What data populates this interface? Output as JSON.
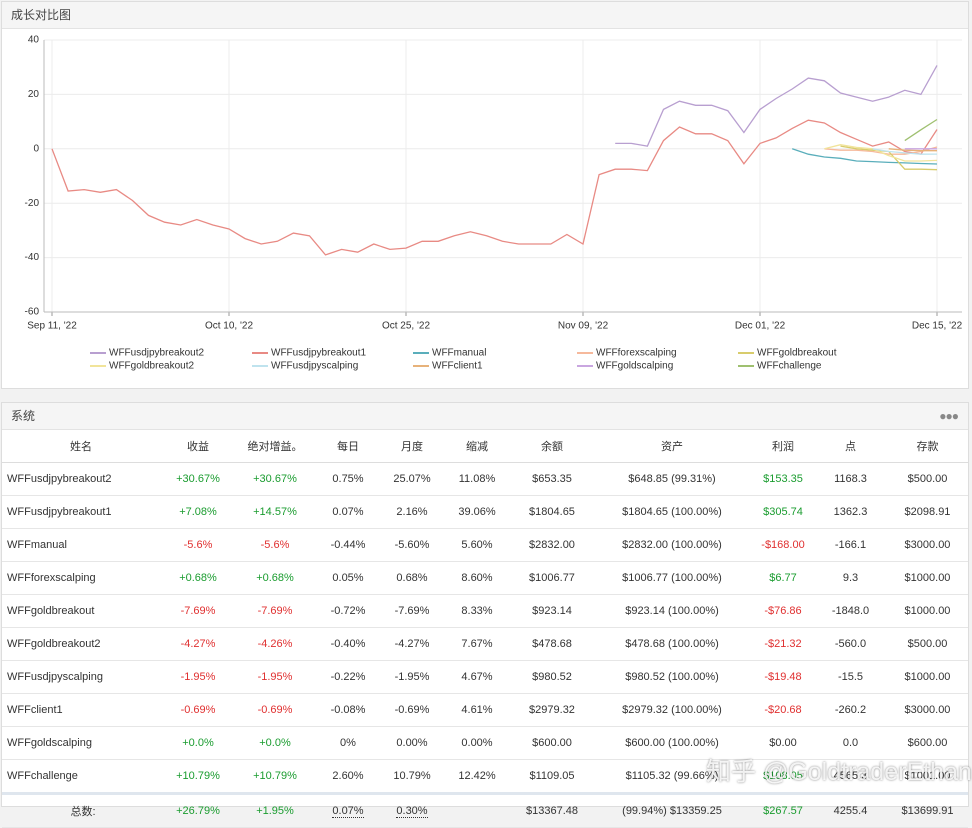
{
  "chart_panel_title": "成长对比图",
  "chart_data": {
    "type": "line",
    "categories": [
      "Sep 11, '22",
      null,
      null,
      null,
      null,
      null,
      null,
      null,
      null,
      null,
      null,
      "Oct 10, '22",
      null,
      null,
      null,
      null,
      null,
      null,
      null,
      null,
      null,
      null,
      "Oct 25, '22",
      null,
      null,
      null,
      null,
      null,
      null,
      null,
      null,
      null,
      null,
      "Nov 09, '22",
      null,
      null,
      null,
      null,
      null,
      null,
      null,
      null,
      null,
      null,
      "Dec 01, '22",
      null,
      null,
      null,
      null,
      null,
      null,
      null,
      null,
      null,
      null,
      "Dec 15, '22"
    ],
    "ylim": [
      -60,
      40
    ],
    "yticks": [
      -60,
      -40,
      -20,
      0,
      20,
      40
    ],
    "grid": true,
    "legend": "bottom",
    "series": [
      {
        "name": "WFFusdjpybreakout2",
        "color": "#b89fd0",
        "values": [
          null,
          null,
          null,
          null,
          null,
          null,
          null,
          null,
          null,
          null,
          null,
          null,
          null,
          null,
          null,
          null,
          null,
          null,
          null,
          null,
          null,
          null,
          null,
          null,
          null,
          null,
          null,
          null,
          null,
          null,
          null,
          null,
          null,
          null,
          null,
          2,
          2,
          1,
          14.5,
          17.5,
          16,
          16,
          14,
          6,
          14.5,
          18.5,
          22,
          26,
          25,
          20.5,
          19,
          17.5,
          19,
          21.5,
          20,
          30.67
        ]
      },
      {
        "name": "WFFusdjpybreakout1",
        "color": "#e88a84",
        "values": [
          0,
          -15.5,
          -15,
          -16,
          -15,
          -19,
          -24.5,
          -27,
          -28,
          -26,
          -28,
          -29.5,
          -33,
          -35,
          -34,
          -31,
          -32,
          -39,
          -37,
          -38,
          -35,
          -37,
          -36.5,
          -34,
          -34,
          -32,
          -30.5,
          -32,
          -34,
          -35,
          -35,
          -35,
          -31.5,
          -35,
          -9.5,
          -7.5,
          -7.5,
          -8,
          3,
          8,
          5.5,
          5.5,
          3,
          -5.5,
          2,
          4,
          7.5,
          10.5,
          9.5,
          6,
          3.5,
          1,
          2.5,
          -1,
          -2,
          7.08
        ]
      },
      {
        "name": "WFFmanual",
        "color": "#5aaebb",
        "values": [
          null,
          null,
          null,
          null,
          null,
          null,
          null,
          null,
          null,
          null,
          null,
          null,
          null,
          null,
          null,
          null,
          null,
          null,
          null,
          null,
          null,
          null,
          null,
          null,
          null,
          null,
          null,
          null,
          null,
          null,
          null,
          null,
          null,
          null,
          null,
          null,
          null,
          null,
          null,
          null,
          null,
          null,
          null,
          null,
          null,
          null,
          0,
          -2,
          -3,
          -3.5,
          -4.5,
          -4.7,
          -5,
          -5.2,
          -5.4,
          -5.6
        ]
      },
      {
        "name": "WFFforexscalping",
        "color": "#f6b99c",
        "values": [
          null,
          null,
          null,
          null,
          null,
          null,
          null,
          null,
          null,
          null,
          null,
          null,
          null,
          null,
          null,
          null,
          null,
          null,
          null,
          null,
          null,
          null,
          null,
          null,
          null,
          null,
          null,
          null,
          null,
          null,
          null,
          null,
          null,
          null,
          null,
          null,
          null,
          null,
          null,
          null,
          null,
          null,
          null,
          null,
          null,
          null,
          null,
          null,
          0,
          -0.5,
          -0.5,
          -1,
          -2,
          -2,
          -1,
          0.68
        ]
      },
      {
        "name": "WFFgoldbreakout",
        "color": "#d8cc6c",
        "values": [
          null,
          null,
          null,
          null,
          null,
          null,
          null,
          null,
          null,
          null,
          null,
          null,
          null,
          null,
          null,
          null,
          null,
          null,
          null,
          null,
          null,
          null,
          null,
          null,
          null,
          null,
          null,
          null,
          null,
          null,
          null,
          null,
          null,
          null,
          null,
          null,
          null,
          null,
          null,
          null,
          null,
          null,
          null,
          null,
          null,
          null,
          null,
          null,
          null,
          1,
          0,
          -0.5,
          -1,
          -7.5,
          -7.5,
          -7.69
        ]
      },
      {
        "name": "WFFgoldbreakout2",
        "color": "#f1e49a",
        "values": [
          null,
          null,
          null,
          null,
          null,
          null,
          null,
          null,
          null,
          null,
          null,
          null,
          null,
          null,
          null,
          null,
          null,
          null,
          null,
          null,
          null,
          null,
          null,
          null,
          null,
          null,
          null,
          null,
          null,
          null,
          null,
          null,
          null,
          null,
          null,
          null,
          null,
          null,
          null,
          null,
          null,
          null,
          null,
          null,
          null,
          null,
          null,
          null,
          0,
          1.5,
          0.5,
          0,
          -2.5,
          -4.5,
          -4.5,
          -4.27
        ]
      },
      {
        "name": "WFFusdjpyscalping",
        "color": "#bfe3ee",
        "values": [
          null,
          null,
          null,
          null,
          null,
          null,
          null,
          null,
          null,
          null,
          null,
          null,
          null,
          null,
          null,
          null,
          null,
          null,
          null,
          null,
          null,
          null,
          null,
          null,
          null,
          null,
          null,
          null,
          null,
          null,
          null,
          null,
          null,
          null,
          null,
          null,
          null,
          null,
          null,
          null,
          null,
          null,
          null,
          null,
          null,
          null,
          null,
          null,
          null,
          null,
          null,
          0,
          -1,
          -1.5,
          -2,
          -1.95
        ]
      },
      {
        "name": "WFFclient1",
        "color": "#e7b27a",
        "values": [
          null,
          null,
          null,
          null,
          null,
          null,
          null,
          null,
          null,
          null,
          null,
          null,
          null,
          null,
          null,
          null,
          null,
          null,
          null,
          null,
          null,
          null,
          null,
          null,
          null,
          null,
          null,
          null,
          null,
          null,
          null,
          null,
          null,
          null,
          null,
          null,
          null,
          null,
          null,
          null,
          null,
          null,
          null,
          null,
          null,
          null,
          null,
          null,
          null,
          null,
          null,
          null,
          0,
          -0.5,
          -0.7,
          -0.69
        ]
      },
      {
        "name": "WFFgoldscalping",
        "color": "#c9a6e0",
        "values": [
          null,
          null,
          null,
          null,
          null,
          null,
          null,
          null,
          null,
          null,
          null,
          null,
          null,
          null,
          null,
          null,
          null,
          null,
          null,
          null,
          null,
          null,
          null,
          null,
          null,
          null,
          null,
          null,
          null,
          null,
          null,
          null,
          null,
          null,
          null,
          null,
          null,
          null,
          null,
          null,
          null,
          null,
          null,
          null,
          null,
          null,
          null,
          null,
          null,
          null,
          null,
          null,
          null,
          0,
          0,
          0
        ]
      },
      {
        "name": "WFFchallenge",
        "color": "#9fc070",
        "values": [
          null,
          null,
          null,
          null,
          null,
          null,
          null,
          null,
          null,
          null,
          null,
          null,
          null,
          null,
          null,
          null,
          null,
          null,
          null,
          null,
          null,
          null,
          null,
          null,
          null,
          null,
          null,
          null,
          null,
          null,
          null,
          null,
          null,
          null,
          null,
          null,
          null,
          null,
          null,
          null,
          null,
          null,
          null,
          null,
          null,
          null,
          null,
          null,
          null,
          null,
          null,
          null,
          null,
          3,
          7,
          10.79
        ]
      }
    ]
  },
  "table_panel_title": "系统",
  "table": {
    "headers": [
      "姓名",
      "收益",
      "绝对增益。",
      "每日",
      "月度",
      "缩减",
      "余额",
      "资产",
      "利润",
      "点",
      "存款"
    ],
    "rows": [
      {
        "cells": [
          "WFFusdjpybreakout2",
          "+30.67%",
          "+30.67%",
          "0.75%",
          "25.07%",
          "11.08%",
          "$653.35",
          "$648.85 (99.31%)",
          "$153.35",
          "1168.3",
          "$500.00"
        ],
        "tones": [
          null,
          "pos",
          "pos",
          null,
          null,
          null,
          null,
          null,
          "pos",
          null,
          null
        ]
      },
      {
        "cells": [
          "WFFusdjpybreakout1",
          "+7.08%",
          "+14.57%",
          "0.07%",
          "2.16%",
          "39.06%",
          "$1804.65",
          "$1804.65 (100.00%)",
          "$305.74",
          "1362.3",
          "$2098.91"
        ],
        "tones": [
          null,
          "pos",
          "pos",
          null,
          null,
          null,
          null,
          null,
          "pos",
          null,
          null
        ]
      },
      {
        "cells": [
          "WFFmanual",
          "-5.6%",
          "-5.6%",
          "-0.44%",
          "-5.60%",
          "5.60%",
          "$2832.00",
          "$2832.00 (100.00%)",
          "-$168.00",
          "-166.1",
          "$3000.00"
        ],
        "tones": [
          null,
          "neg",
          "neg",
          null,
          null,
          null,
          null,
          null,
          "neg",
          null,
          null
        ]
      },
      {
        "cells": [
          "WFFforexscalping",
          "+0.68%",
          "+0.68%",
          "0.05%",
          "0.68%",
          "8.60%",
          "$1006.77",
          "$1006.77 (100.00%)",
          "$6.77",
          "9.3",
          "$1000.00"
        ],
        "tones": [
          null,
          "pos",
          "pos",
          null,
          null,
          null,
          null,
          null,
          "pos",
          null,
          null
        ]
      },
      {
        "cells": [
          "WFFgoldbreakout",
          "-7.69%",
          "-7.69%",
          "-0.72%",
          "-7.69%",
          "8.33%",
          "$923.14",
          "$923.14 (100.00%)",
          "-$76.86",
          "-1848.0",
          "$1000.00"
        ],
        "tones": [
          null,
          "neg",
          "neg",
          null,
          null,
          null,
          null,
          null,
          "neg",
          null,
          null
        ]
      },
      {
        "cells": [
          "WFFgoldbreakout2",
          "-4.27%",
          "-4.26%",
          "-0.40%",
          "-4.27%",
          "7.67%",
          "$478.68",
          "$478.68 (100.00%)",
          "-$21.32",
          "-560.0",
          "$500.00"
        ],
        "tones": [
          null,
          "neg",
          "neg",
          null,
          null,
          null,
          null,
          null,
          "neg",
          null,
          null
        ]
      },
      {
        "cells": [
          "WFFusdjpyscalping",
          "-1.95%",
          "-1.95%",
          "-0.22%",
          "-1.95%",
          "4.67%",
          "$980.52",
          "$980.52 (100.00%)",
          "-$19.48",
          "-15.5",
          "$1000.00"
        ],
        "tones": [
          null,
          "neg",
          "neg",
          null,
          null,
          null,
          null,
          null,
          "neg",
          null,
          null
        ]
      },
      {
        "cells": [
          "WFFclient1",
          "-0.69%",
          "-0.69%",
          "-0.08%",
          "-0.69%",
          "4.61%",
          "$2979.32",
          "$2979.32 (100.00%)",
          "-$20.68",
          "-260.2",
          "$3000.00"
        ],
        "tones": [
          null,
          "neg",
          "neg",
          null,
          null,
          null,
          null,
          null,
          "neg",
          null,
          null
        ]
      },
      {
        "cells": [
          "WFFgoldscalping",
          "+0.0%",
          "+0.0%",
          "0%",
          "0.00%",
          "0.00%",
          "$600.00",
          "$600.00 (100.00%)",
          "$0.00",
          "0.0",
          "$600.00"
        ],
        "tones": [
          null,
          "pos",
          "pos",
          null,
          null,
          null,
          null,
          null,
          null,
          null,
          null
        ]
      },
      {
        "cells": [
          "WFFchallenge",
          "+10.79%",
          "+10.79%",
          "2.60%",
          "10.79%",
          "12.42%",
          "$1109.05",
          "$1105.32 (99.66%)",
          "$108.05",
          "4565.3",
          "$1001.00"
        ],
        "tones": [
          null,
          "pos",
          "pos",
          null,
          null,
          null,
          null,
          null,
          "pos",
          null,
          null
        ]
      }
    ],
    "total": {
      "cells": [
        "总数:",
        "+26.79%",
        "+1.95%",
        "0.07%",
        "0.30%",
        null,
        "$13367.48",
        "(99.94%) $13359.25",
        "$267.57",
        "4255.4",
        "$13699.91"
      ],
      "tones": [
        null,
        "pos",
        "pos",
        null,
        null,
        null,
        null,
        null,
        "pos",
        null,
        null
      ]
    }
  },
  "watermark": "知乎 @GoldtraderEthan"
}
